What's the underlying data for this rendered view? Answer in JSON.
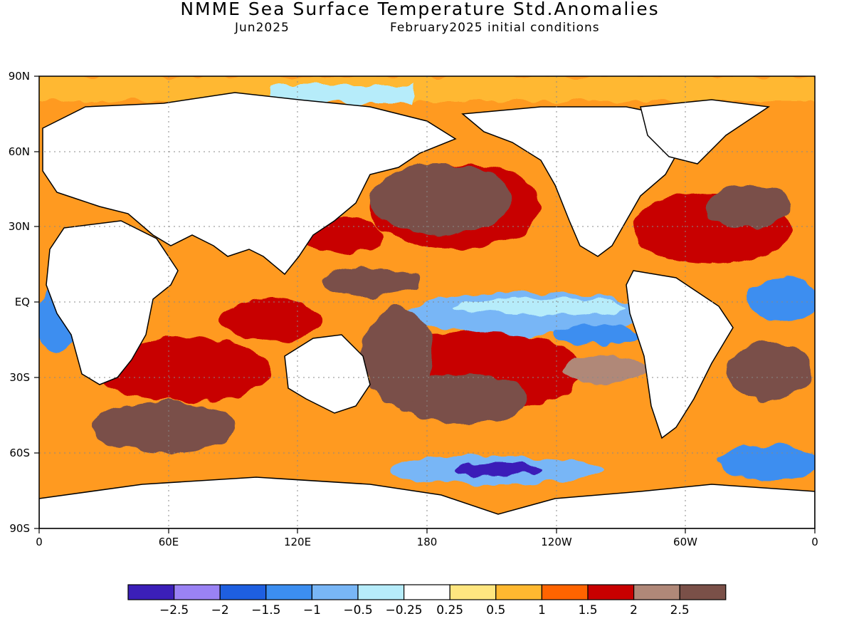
{
  "title": "NMME Sea Surface Temperature Std.Anomalies",
  "subtitle_left": "Jun2025",
  "subtitle_right": "February2025 initial conditions",
  "map": {
    "lat_labels": [
      "90N",
      "60N",
      "30N",
      "EQ",
      "30S",
      "60S",
      "90S"
    ],
    "lon_labels": [
      "0",
      "60E",
      "120E",
      "180",
      "120W",
      "60W",
      "0"
    ]
  },
  "colorbar": {
    "colors": [
      "#3b1fb8",
      "#9a82f4",
      "#1e5fe0",
      "#3c8ef0",
      "#78b6f6",
      "#b6ecfa",
      "#ffffff",
      "#ffe680",
      "#ffb830",
      "#ff6400",
      "#c80000",
      "#b08878",
      "#7a5048"
    ],
    "labels": [
      "-2.5",
      "-2",
      "-1.5",
      "-1",
      "-0.5",
      "-0.25",
      "0.25",
      "0.5",
      "1",
      "1.5",
      "2",
      "2.5"
    ]
  }
}
